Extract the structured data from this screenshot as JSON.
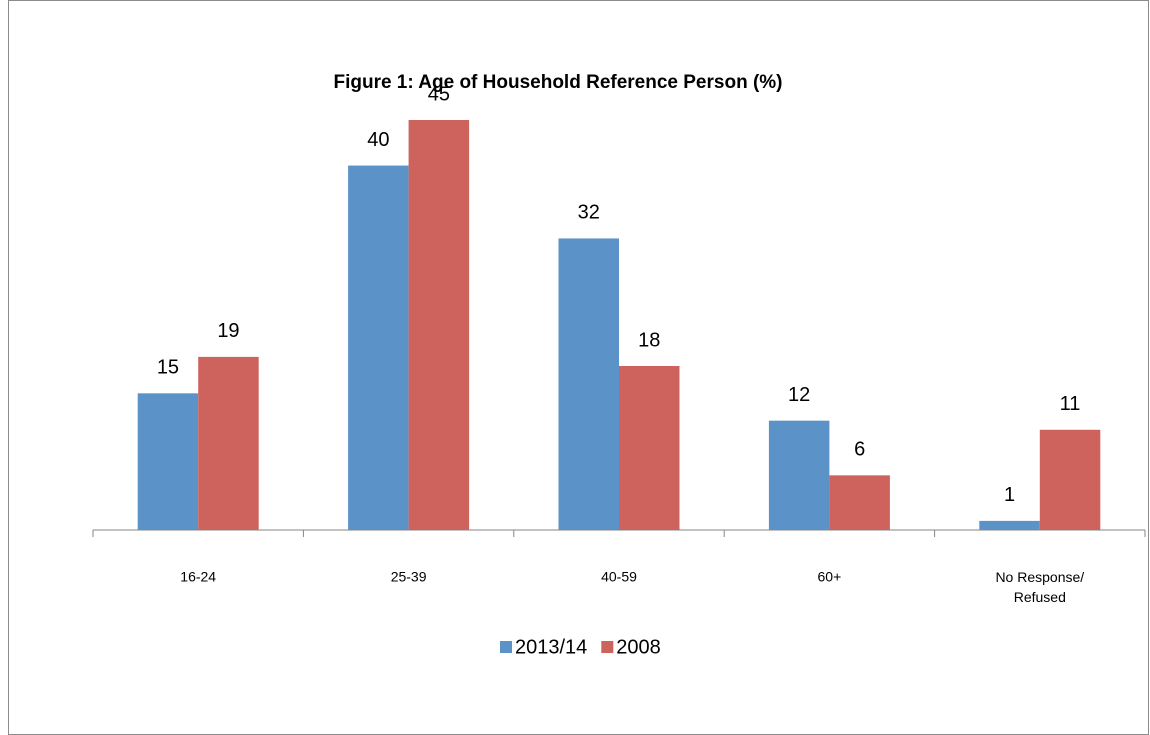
{
  "chart_data": {
    "type": "bar",
    "title": "Figure 1: Age of Household Reference Person (%)",
    "categories": [
      "16-24",
      "25-39",
      "40-59",
      "60+",
      "No Response/\nRefused"
    ],
    "series": [
      {
        "name": "2013/14",
        "color": "#5b93c8",
        "values": [
          15,
          40,
          32,
          12,
          1
        ]
      },
      {
        "name": "2008",
        "color": "#cd635c",
        "values": [
          19,
          45,
          18,
          6,
          11
        ]
      }
    ],
    "legend": "bottom"
  }
}
